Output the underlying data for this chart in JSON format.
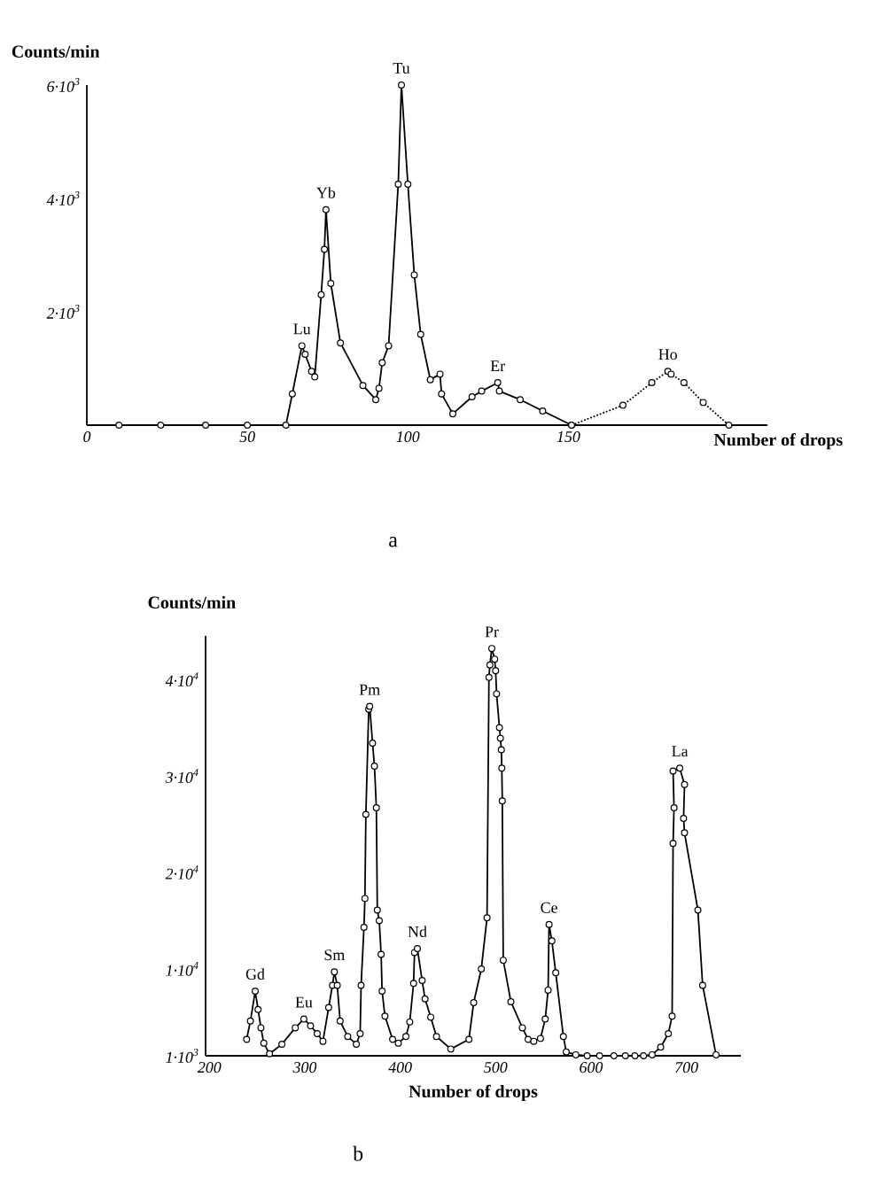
{
  "chart_data": [
    {
      "type": "line",
      "ylabel": "Counts/min",
      "xlabel": "Number of drops",
      "xlim": [
        0,
        212
      ],
      "ylim": [
        0,
        6000
      ],
      "xticks": [
        0,
        50,
        100,
        150
      ],
      "yticks": [
        {
          "value": 2000,
          "label": "2·10$^{3}$"
        },
        {
          "value": 4000,
          "label": "4·10$^{3}$"
        },
        {
          "value": 6000,
          "label": "6·10$^{3}$"
        }
      ],
      "marker": "circle",
      "grid": false,
      "series": [
        {
          "color": "#000000",
          "line_style": "solid",
          "x": [
            10,
            23,
            37,
            50,
            62,
            64,
            67,
            68,
            70,
            71,
            73,
            74,
            74.5,
            76,
            79,
            86,
            90,
            91,
            92,
            94,
            97,
            98,
            100,
            102,
            104,
            107,
            110,
            110.5,
            114,
            120,
            123,
            128,
            128.5,
            135,
            142,
            151
          ],
          "values": [
            0,
            0,
            0,
            0,
            0,
            550,
            1400,
            1250,
            950,
            850,
            2300,
            3100,
            3800,
            2500,
            1450,
            700,
            450,
            650,
            1100,
            1400,
            4250,
            6000,
            4250,
            2650,
            1600,
            800,
            900,
            550,
            200,
            500,
            600,
            750,
            600,
            450,
            250,
            0
          ]
        },
        {
          "color": "#000000",
          "line_style": "dotted",
          "x": [
            151,
            167,
            176,
            181,
            182,
            186,
            192,
            200
          ],
          "values": [
            0,
            350,
            750,
            950,
            900,
            750,
            400,
            0
          ]
        }
      ],
      "annotations": [
        {
          "text": "Lu",
          "x": 67,
          "y": 1400
        },
        {
          "text": "Yb",
          "x": 74.5,
          "y": 3800
        },
        {
          "text": "Tu",
          "x": 98,
          "y": 6000
        },
        {
          "text": "Er",
          "x": 128,
          "y": 750
        },
        {
          "text": "Ho",
          "x": 181,
          "y": 950
        },
        "a"
      ]
    },
    {
      "type": "line",
      "ylabel": "Counts/min",
      "xlabel": "Number of drops",
      "xlim": [
        196,
        757
      ],
      "ylim": [
        1000,
        44500
      ],
      "xticks": [
        200,
        300,
        400,
        500,
        600,
        700
      ],
      "yticks": [
        {
          "value": 1000,
          "label": "1·10$^{3}$"
        },
        {
          "value": 10000,
          "label": "1·10$^{4}$"
        },
        {
          "value": 20000,
          "label": "2·10$^{4}$"
        },
        {
          "value": 30000,
          "label": "3·10$^{4}$"
        },
        {
          "value": 40000,
          "label": "4·10$^{4}$"
        }
      ],
      "marker": "circle",
      "grid": false,
      "series": [
        {
          "color": "#000000",
          "line_style": "solid",
          "x": [
            239,
            243,
            248,
            251,
            254,
            257,
            263,
            276,
            290,
            299,
            306,
            313,
            319,
            325,
            329,
            331,
            334,
            337,
            345,
            354,
            358,
            359,
            362,
            363,
            364,
            367,
            368,
            371,
            373,
            375,
            376,
            378,
            380,
            381,
            384,
            392,
            398,
            406,
            410,
            414,
            415,
            418,
            423,
            426,
            432,
            438,
            453,
            472,
            477,
            485,
            491,
            493,
            494,
            496,
            499,
            500,
            501,
            504,
            505,
            506,
            506.5,
            507,
            508,
            516,
            528,
            534,
            540,
            547,
            552,
            555,
            556,
            559,
            563,
            571,
            574,
            584,
            596,
            609,
            624,
            636,
            646,
            655,
            664,
            673,
            681,
            685,
            686,
            687,
            686,
            693,
            698,
            697,
            698,
            712,
            717,
            731
          ],
          "values": [
            2700,
            4600,
            7700,
            5800,
            3900,
            2300,
            1200,
            2200,
            3900,
            4800,
            4100,
            3300,
            2500,
            6000,
            8300,
            9700,
            8300,
            4600,
            3000,
            2200,
            3300,
            8300,
            14300,
            17300,
            26000,
            36900,
            37200,
            33400,
            31000,
            26700,
            16100,
            15000,
            11500,
            7700,
            5100,
            2700,
            2300,
            3000,
            4500,
            8500,
            11700,
            12100,
            8800,
            6900,
            5000,
            3000,
            1700,
            2700,
            6500,
            10000,
            15300,
            40200,
            41500,
            43200,
            42100,
            40900,
            38500,
            35000,
            33900,
            32700,
            30800,
            27400,
            10900,
            6600,
            3900,
            2700,
            2500,
            2800,
            4800,
            7800,
            14600,
            12900,
            9600,
            3000,
            1400,
            1100,
            1000,
            1000,
            1000,
            1000,
            1000,
            1000,
            1100,
            1900,
            3300,
            5100,
            23000,
            26700,
            30500,
            30800,
            29100,
            25600,
            24100,
            16100,
            8300,
            1100
          ]
        }
      ],
      "annotations": [
        {
          "text": "Gd",
          "x": 248,
          "y": 7700
        },
        {
          "text": "Eu",
          "x": 299,
          "y": 4800
        },
        {
          "text": "Sm",
          "x": 331,
          "y": 9700
        },
        {
          "text": "Pm",
          "x": 368,
          "y": 37200
        },
        {
          "text": "Nd",
          "x": 418,
          "y": 12100
        },
        {
          "text": "Pr",
          "x": 496,
          "y": 43200
        },
        {
          "text": "Ce",
          "x": 556,
          "y": 14600
        },
        {
          "text": "La",
          "x": 693,
          "y": 30800
        },
        "b"
      ]
    }
  ]
}
